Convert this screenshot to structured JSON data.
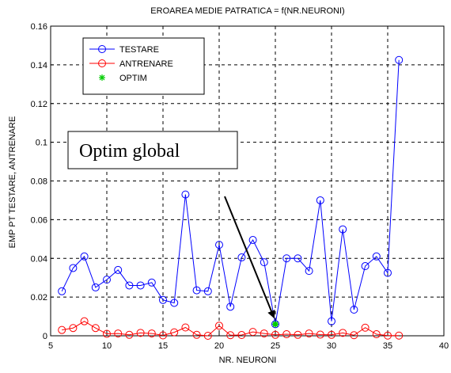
{
  "chart_data": {
    "type": "line",
    "title": "EROAREA MEDIE PATRATICA = f(NR.NEURONI)",
    "xlabel": "NR. NEURONI",
    "ylabel": "EMP PT TESTARE, ANTRENARE",
    "xlim": [
      5,
      40
    ],
    "ylim": [
      0,
      0.16
    ],
    "x_ticks": [
      "5",
      "10",
      "15",
      "20",
      "25",
      "30",
      "35",
      "40"
    ],
    "y_ticks": [
      "0",
      "0.02",
      "0.04",
      "0.06",
      "0.08",
      "0.1",
      "0.12",
      "0.14",
      "0.16"
    ],
    "grid": true,
    "grid_style": "dashed",
    "legend_position": "top-left",
    "x": [
      6,
      7,
      8,
      9,
      10,
      11,
      12,
      13,
      14,
      15,
      16,
      17,
      18,
      19,
      20,
      21,
      22,
      23,
      24,
      25,
      26,
      27,
      28,
      29,
      30,
      31,
      32,
      33,
      34,
      35,
      36
    ],
    "series": [
      {
        "name": "TESTARE",
        "color": "#0000ff",
        "marker": "circle",
        "values": [
          0.023,
          0.035,
          0.041,
          0.025,
          0.029,
          0.034,
          0.026,
          0.026,
          0.0275,
          0.0185,
          0.017,
          0.073,
          0.0235,
          0.023,
          0.047,
          0.015,
          0.0405,
          0.0495,
          0.038,
          0.006,
          0.04,
          0.04,
          0.0335,
          0.07,
          0.0075,
          0.055,
          0.0135,
          0.036,
          0.041,
          0.0325,
          0.1425
        ]
      },
      {
        "name": "ANTRENARE",
        "color": "#ff0000",
        "marker": "circle",
        "values": [
          0.003,
          0.004,
          0.0075,
          0.004,
          0.001,
          0.0012,
          0.0005,
          0.0015,
          0.0012,
          0.0002,
          0.0018,
          0.0043,
          0.0005,
          0.0,
          0.0052,
          0.0003,
          0.0004,
          0.002,
          0.0012,
          0.0005,
          0.0008,
          0.0005,
          0.0012,
          0.0006,
          0.0005,
          0.0015,
          0.0003,
          0.0042,
          0.0008,
          0.0001,
          0.0001
        ]
      },
      {
        "name": "OPTIM",
        "color": "#00cc00",
        "marker": "star",
        "points": [
          [
            25,
            0.006
          ]
        ]
      }
    ],
    "annotations": [
      {
        "text": "Optim global",
        "arrow_to": [
          25,
          0.006
        ]
      }
    ]
  }
}
